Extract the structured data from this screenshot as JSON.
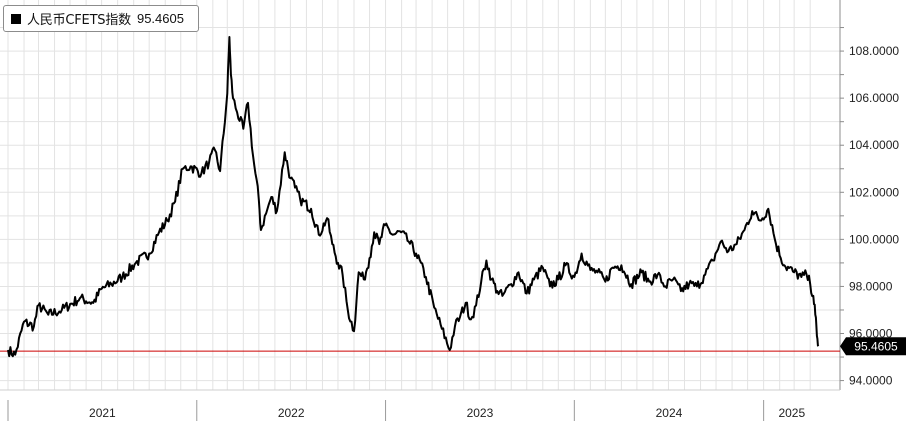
{
  "legend": {
    "series_name": "人民币CFETS指数",
    "series_value": "95.4605"
  },
  "chart_data": {
    "type": "line",
    "series_name": "人民币CFETS指数",
    "last_value_label": "95.4605",
    "reference_level": 95.25,
    "y_ticks": [
      "94.0000",
      "96.0000",
      "98.0000",
      "100.0000",
      "102.0000",
      "104.0000",
      "106.0000",
      "108.0000"
    ],
    "ylim": [
      93.6,
      110.0
    ],
    "x_labels": [
      "2021",
      "2022",
      "2023",
      "2024",
      "2025"
    ],
    "x_range": [
      "2021-01-01",
      "2025-04-20"
    ],
    "grid": true,
    "legend_position": "top-left",
    "y_axis_position": "right",
    "colors": {
      "line": "#000000",
      "reference": "#cc0000",
      "grid": "#e3e3e3",
      "axis": "#8c8c8c"
    },
    "x": [
      "2021-01-01",
      "2021-01-15",
      "2021-02-01",
      "2021-02-20",
      "2021-03-01",
      "2021-03-20",
      "2021-04-15",
      "2021-05-20",
      "2021-06-15",
      "2021-07-01",
      "2021-07-20",
      "2021-08-10",
      "2021-09-05",
      "2021-10-01",
      "2021-10-20",
      "2021-11-05",
      "2021-11-20",
      "2021-12-05",
      "2021-12-20",
      "2022-01-10",
      "2022-01-25",
      "2022-02-05",
      "2022-02-15",
      "2022-03-01",
      "2022-03-05",
      "2022-03-08",
      "2022-03-12",
      "2022-03-20",
      "2022-04-01",
      "2022-04-10",
      "2022-04-20",
      "2022-05-01",
      "2022-05-05",
      "2022-05-15",
      "2022-05-25",
      "2022-06-05",
      "2022-06-20",
      "2022-07-01",
      "2022-07-10",
      "2022-07-20",
      "2022-08-10",
      "2022-08-25",
      "2022-09-10",
      "2022-09-20",
      "2022-10-01",
      "2022-10-10",
      "2022-10-20",
      "2022-11-01",
      "2022-11-10",
      "2022-11-20",
      "2022-12-01",
      "2022-12-10",
      "2022-12-20",
      "2022-12-31",
      "2023-01-15",
      "2023-01-31",
      "2023-02-15",
      "2023-03-01",
      "2023-03-20",
      "2023-04-05",
      "2023-04-20",
      "2023-05-05",
      "2023-05-15",
      "2023-05-25",
      "2023-06-05",
      "2023-06-15",
      "2023-06-25",
      "2023-07-05",
      "2023-07-15",
      "2023-07-25",
      "2023-08-05",
      "2023-08-15",
      "2023-09-01",
      "2023-09-15",
      "2023-10-01",
      "2023-10-15",
      "2023-11-01",
      "2023-11-15",
      "2023-12-01",
      "2023-12-15",
      "2024-01-01",
      "2024-01-15",
      "2024-02-01",
      "2024-02-15",
      "2024-03-01",
      "2024-03-15",
      "2024-04-01",
      "2024-04-20",
      "2024-05-10",
      "2024-05-25",
      "2024-06-10",
      "2024-06-25",
      "2024-07-10",
      "2024-07-25",
      "2024-08-10",
      "2024-08-25",
      "2024-09-10",
      "2024-09-25",
      "2024-10-10",
      "2024-10-25",
      "2024-11-10",
      "2024-11-25",
      "2024-12-10",
      "2024-12-25",
      "2025-01-10",
      "2025-01-25",
      "2025-02-10",
      "2025-03-01",
      "2025-03-15",
      "2025-03-25",
      "2025-04-01",
      "2025-04-07",
      "2025-04-11",
      "2025-04-14",
      "2025-04-17"
    ],
    "y": [
      95.3,
      95.1,
      96.5,
      96.3,
      97.2,
      96.8,
      97.0,
      97.5,
      97.3,
      97.9,
      98.1,
      98.4,
      99.0,
      99.4,
      100.3,
      100.8,
      101.6,
      103.0,
      103.1,
      102.8,
      103.3,
      103.8,
      102.9,
      106.2,
      108.6,
      107.0,
      106.0,
      105.4,
      104.7,
      105.8,
      103.5,
      101.7,
      100.4,
      101.1,
      101.8,
      101.2,
      103.7,
      102.6,
      102.2,
      101.7,
      101.3,
      100.2,
      100.9,
      99.8,
      99.0,
      98.5,
      97.0,
      96.1,
      98.6,
      98.3,
      99.2,
      100.3,
      99.8,
      100.6,
      100.2,
      100.3,
      99.9,
      99.4,
      98.4,
      97.1,
      96.2,
      95.3,
      96.3,
      96.7,
      97.3,
      96.6,
      97.2,
      98.2,
      99.1,
      98.3,
      97.8,
      97.6,
      98.1,
      98.6,
      97.7,
      98.3,
      98.8,
      98.0,
      98.3,
      98.9,
      98.4,
      99.4,
      98.7,
      98.6,
      98.2,
      98.8,
      98.9,
      98.1,
      98.6,
      98.2,
      98.5,
      98.0,
      98.3,
      97.8,
      98.1,
      98.0,
      98.5,
      99.1,
      99.9,
      99.5,
      99.8,
      100.4,
      101.2,
      100.8,
      101.3,
      99.8,
      98.9,
      98.6,
      98.4,
      98.5,
      98.1,
      97.6,
      96.8,
      95.9,
      95.46
    ]
  }
}
